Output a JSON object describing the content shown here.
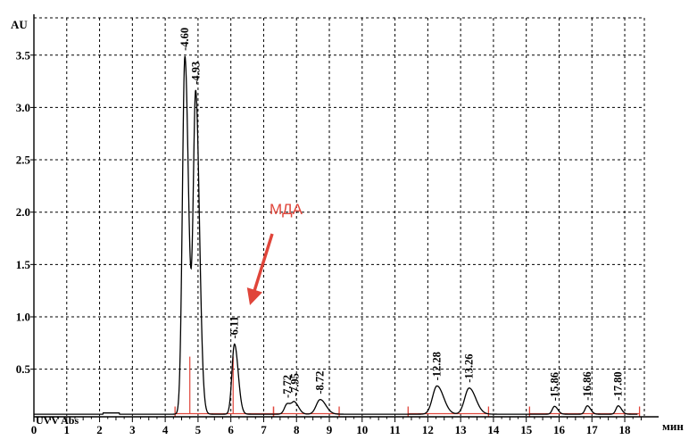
{
  "chart_data": {
    "type": "line",
    "title": "",
    "ylabel": "AU",
    "xlabel": "мин",
    "detector_label": "UVV Abs",
    "xlim": [
      0,
      18.5
    ],
    "ylim": [
      0,
      3.9
    ],
    "grid": true,
    "x_ticks": [
      0,
      1,
      2,
      3,
      4,
      5,
      6,
      7,
      8,
      9,
      10,
      11,
      12,
      13,
      14,
      15,
      16,
      17,
      18
    ],
    "y_ticks": [
      0.5,
      1.0,
      1.5,
      2.0,
      2.5,
      3.0,
      3.5
    ],
    "x_tick_labels": [
      "0",
      "1",
      "2",
      "3",
      "4",
      "5",
      "6",
      "7",
      "8",
      "9",
      "10",
      "11",
      "12",
      "13",
      "14",
      "15",
      "16",
      "17",
      "18"
    ],
    "y_tick_labels": [
      "0.5",
      "1.0",
      "1.5",
      "2.0",
      "2.5",
      "3.0",
      "3.5"
    ],
    "baseline": 0.07,
    "peaks": [
      {
        "rt": 4.6,
        "label": "4.60",
        "height": 3.42,
        "width": 0.09
      },
      {
        "rt": 4.93,
        "label": "4.93",
        "height": 3.05,
        "width": 0.09
      },
      {
        "rt": 6.11,
        "label": "6.11",
        "height": 0.67,
        "width": 0.09
      },
      {
        "rt": 7.72,
        "label": "7.72",
        "height": 0.1,
        "width": 0.1
      },
      {
        "rt": 7.95,
        "label": "7.95",
        "height": 0.1,
        "width": 0.1
      },
      {
        "rt": 8.72,
        "label": "8.72",
        "height": 0.14,
        "width": 0.14
      },
      {
        "rt": 12.28,
        "label": "12.28",
        "height": 0.27,
        "width": 0.16
      },
      {
        "rt": 13.26,
        "label": "13.26",
        "height": 0.25,
        "width": 0.16
      },
      {
        "rt": 15.86,
        "label": "15.86",
        "height": 0.075,
        "width": 0.08
      },
      {
        "rt": 16.86,
        "label": "16.86",
        "height": 0.08,
        "width": 0.08
      },
      {
        "rt": 17.8,
        "label": "17.80",
        "height": 0.08,
        "width": 0.08
      }
    ],
    "integration_segments": [
      [
        4.3,
        7.3
      ],
      [
        7.3,
        9.3
      ],
      [
        11.4,
        13.85
      ],
      [
        15.1,
        18.45
      ]
    ],
    "annotation": {
      "text": "МДА",
      "points_to_rt": 6.11,
      "color": "#e0453a"
    },
    "colors": {
      "trace": "#000000",
      "grid": "#000000",
      "integration": "#e0453a"
    }
  }
}
